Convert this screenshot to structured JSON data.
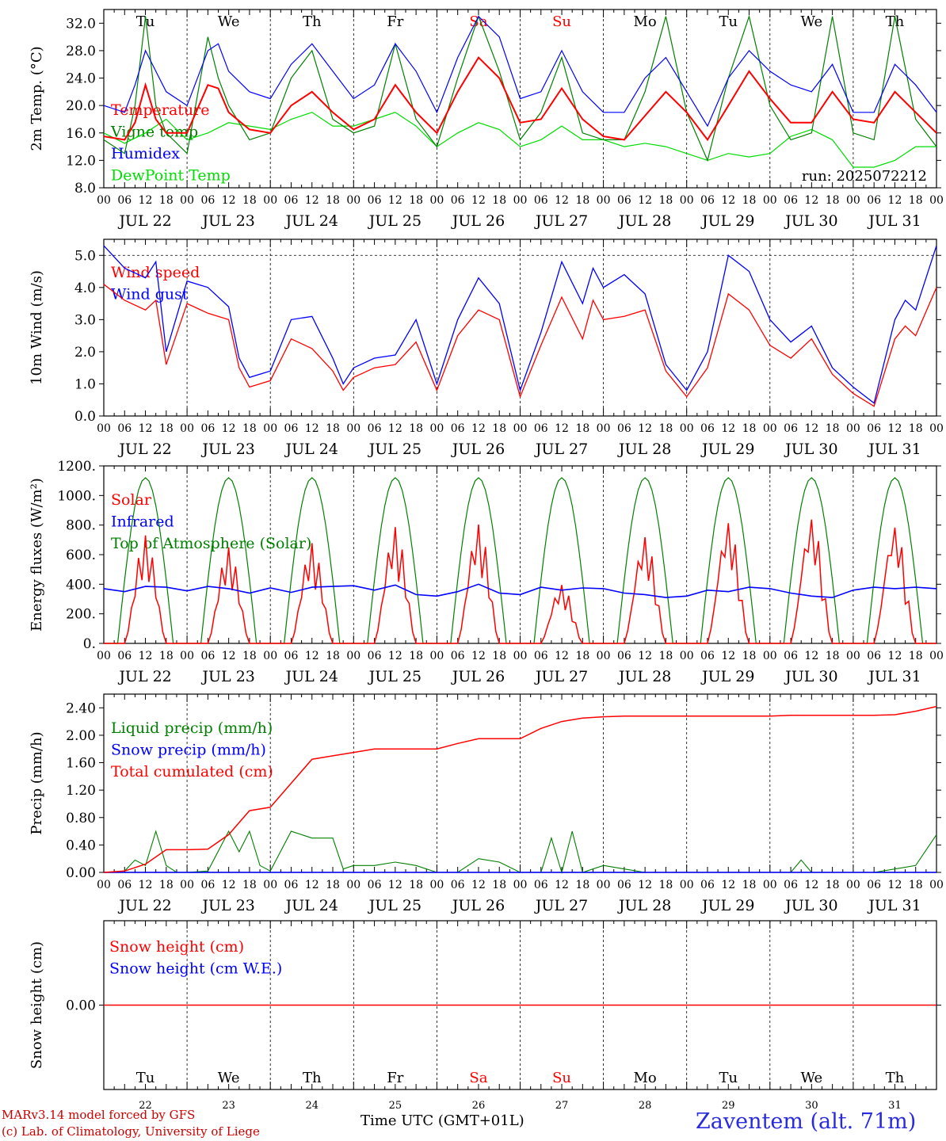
{
  "days": [
    "JUL 22",
    "JUL 23",
    "JUL 24",
    "JUL 25",
    "JUL 26",
    "JUL 27",
    "JUL 28",
    "JUL 29",
    "JUL 30",
    "JUL 31"
  ],
  "weekdays": [
    "Tu",
    "We",
    "Th",
    "Fr",
    "Sa",
    "Su",
    "Mo",
    "Tu",
    "We",
    "Th"
  ],
  "weekday_colors": [
    "#000000",
    "#000000",
    "#000000",
    "#000000",
    "#ff0000",
    "#ff0000",
    "#000000",
    "#000000",
    "#000000",
    "#000000"
  ],
  "day_numbers": [
    "22",
    "23",
    "24",
    "25",
    "26",
    "27",
    "28",
    "29",
    "30",
    "31"
  ],
  "hour_ticks": [
    "00",
    "06",
    "12",
    "18"
  ],
  "hour_end": "00",
  "colors": {
    "red": "#ff0000",
    "green": "#008000",
    "blue": "#0000ff",
    "lightgreen": "#00dd00",
    "grid": "#000000"
  },
  "footer": {
    "model": "MARv3.14 model forced by GFS",
    "copyright": "(c) Lab. of Climatology, University of Liege",
    "xlabel": "Time UTC (GMT+01L)",
    "station": "Zaventem (alt. 71m)"
  },
  "chart_data": [
    {
      "type": "line",
      "ylabel": "2m Temp. (°C)",
      "run": "run: 2025072212",
      "ylim": [
        8,
        34
      ],
      "yticks": [
        "8.0",
        "12.0",
        "16.0",
        "20.0",
        "24.0",
        "28.0",
        "32.0"
      ],
      "legend": [
        "Temperature",
        "Vigne temp",
        "Humidex",
        "DewPoint Temp"
      ],
      "series": [
        {
          "name": "Temperature",
          "color": "#ff0000",
          "x": [
            0,
            6,
            9,
            12,
            15,
            18,
            24,
            30,
            33,
            36,
            42,
            48,
            54,
            60,
            66,
            72,
            78,
            84,
            90,
            96,
            102,
            108,
            114,
            120,
            126,
            132,
            138,
            144,
            150,
            156,
            162,
            168,
            174,
            180,
            186,
            192,
            198,
            204,
            210,
            216,
            222,
            228,
            234,
            240
          ],
          "values": [
            15.5,
            15,
            17.5,
            23,
            18,
            16,
            16,
            23,
            22.5,
            19,
            16.5,
            16,
            20,
            22,
            19,
            16.5,
            18,
            23,
            19,
            16,
            22,
            27,
            24,
            17.5,
            18,
            22.5,
            18,
            15.5,
            15,
            18.5,
            22,
            19,
            15,
            20,
            25,
            21,
            17.5,
            17.5,
            22,
            18,
            17.5,
            22,
            19,
            16
          ]
        },
        {
          "name": "Vigne temp",
          "color": "#008000",
          "x": [
            0,
            6,
            9,
            12,
            15,
            18,
            24,
            30,
            33,
            36,
            42,
            48,
            54,
            60,
            66,
            72,
            78,
            84,
            90,
            96,
            102,
            108,
            114,
            120,
            126,
            132,
            138,
            144,
            150,
            156,
            162,
            168,
            174,
            180,
            186,
            192,
            198,
            204,
            210,
            216,
            222,
            228,
            234,
            240
          ],
          "values": [
            15,
            13,
            20,
            33,
            20,
            16,
            13,
            30,
            24,
            20,
            15,
            16,
            24,
            28,
            18,
            16,
            17,
            29,
            18,
            14,
            24,
            33,
            25,
            15,
            19,
            27,
            16,
            15,
            15,
            22,
            33,
            19,
            12,
            24,
            33,
            20,
            15,
            16,
            33,
            16,
            15,
            33,
            18,
            14
          ]
        },
        {
          "name": "Humidex",
          "color": "#0000ff",
          "x": [
            0,
            6,
            9,
            12,
            15,
            18,
            24,
            30,
            33,
            36,
            42,
            48,
            54,
            60,
            66,
            72,
            78,
            84,
            90,
            96,
            102,
            108,
            114,
            120,
            126,
            132,
            138,
            144,
            150,
            156,
            162,
            168,
            174,
            180,
            186,
            192,
            198,
            204,
            210,
            216,
            222,
            228,
            234,
            240
          ],
          "values": [
            20,
            19,
            23,
            28,
            25,
            22,
            20,
            28,
            29,
            25,
            22,
            21,
            26,
            29,
            25,
            21,
            23,
            29,
            25,
            19,
            27,
            33,
            30,
            21,
            22,
            28,
            22,
            19,
            19,
            24,
            27,
            22,
            17,
            24,
            28,
            25,
            23,
            22,
            26,
            19,
            19,
            26,
            23,
            19
          ]
        },
        {
          "name": "DewPoint Temp",
          "color": "#00dd00",
          "x": [
            0,
            6,
            12,
            18,
            24,
            30,
            36,
            42,
            48,
            54,
            60,
            66,
            72,
            78,
            84,
            90,
            96,
            102,
            108,
            114,
            120,
            126,
            132,
            138,
            144,
            150,
            156,
            162,
            168,
            174,
            180,
            186,
            192,
            198,
            204,
            210,
            216,
            222,
            228,
            234,
            240
          ],
          "values": [
            16,
            14.5,
            16,
            18,
            15,
            16,
            17.5,
            17,
            16.5,
            18,
            19,
            17,
            17,
            18,
            19,
            17,
            14,
            16,
            17.5,
            16.5,
            14,
            15,
            17,
            15,
            15,
            14,
            14.5,
            14,
            13,
            12,
            13,
            12.5,
            13,
            15.5,
            16.5,
            15,
            11,
            11,
            12,
            14,
            14
          ]
        }
      ]
    },
    {
      "type": "line",
      "ylabel": "10m Wind (m/s)",
      "ylim": [
        0,
        5.5
      ],
      "yticks": [
        "0.0",
        "1.0",
        "2.0",
        "3.0",
        "4.0",
        "5.0"
      ],
      "legend": [
        "Wind speed",
        "Wind gust"
      ],
      "series": [
        {
          "name": "Wind speed",
          "color": "#ff0000",
          "x": [
            0,
            6,
            12,
            15,
            18,
            24,
            30,
            36,
            39,
            42,
            48,
            54,
            60,
            66,
            69,
            72,
            78,
            84,
            90,
            96,
            102,
            108,
            114,
            120,
            126,
            132,
            138,
            141,
            144,
            150,
            156,
            162,
            168,
            174,
            180,
            186,
            192,
            198,
            204,
            210,
            216,
            222,
            228,
            231,
            234,
            240
          ],
          "values": [
            4.1,
            3.6,
            3.3,
            3.6,
            1.6,
            3.5,
            3.2,
            3.0,
            1.5,
            0.9,
            1.1,
            2.4,
            2.1,
            1.4,
            0.8,
            1.2,
            1.5,
            1.6,
            2.3,
            0.8,
            2.5,
            3.3,
            3.0,
            0.6,
            2.2,
            3.7,
            2.4,
            3.6,
            3.0,
            3.1,
            3.3,
            1.4,
            0.6,
            1.5,
            3.8,
            3.3,
            2.2,
            1.8,
            2.4,
            1.3,
            0.7,
            0.3,
            2.4,
            2.8,
            2.5,
            4.0
          ]
        },
        {
          "name": "Wind gust",
          "color": "#0000ff",
          "x": [
            0,
            6,
            12,
            15,
            18,
            24,
            30,
            36,
            39,
            42,
            48,
            54,
            60,
            66,
            69,
            72,
            78,
            84,
            90,
            96,
            102,
            108,
            114,
            120,
            126,
            132,
            138,
            141,
            144,
            150,
            156,
            162,
            168,
            174,
            180,
            186,
            192,
            198,
            204,
            210,
            216,
            222,
            228,
            231,
            234,
            240
          ],
          "values": [
            5.3,
            4.6,
            4.3,
            4.8,
            2.0,
            4.2,
            4.0,
            3.4,
            1.8,
            1.2,
            1.4,
            3.0,
            3.1,
            1.8,
            1.0,
            1.5,
            1.8,
            1.9,
            3.0,
            1.0,
            3.0,
            4.3,
            3.5,
            0.8,
            2.6,
            4.8,
            3.5,
            4.6,
            4.0,
            4.4,
            3.8,
            1.6,
            0.8,
            2.0,
            5.0,
            4.5,
            3.0,
            2.3,
            2.8,
            1.5,
            0.9,
            0.4,
            3.0,
            3.6,
            3.3,
            5.3
          ]
        }
      ]
    },
    {
      "type": "line",
      "ylabel": "Energy fluxes (W/m²)",
      "ylim": [
        0,
        1200
      ],
      "yticks": [
        "0.",
        "200.",
        "400.",
        "600.",
        "800.",
        "1000.",
        "1200."
      ],
      "legend": [
        "Solar",
        "Infrared",
        "Top of Atmosphere (Solar)"
      ],
      "toa_peak": 1120,
      "solar_peaks": [
        730,
        650,
        680,
        790,
        810,
        400,
        730,
        830,
        860,
        810
      ],
      "infrared": [
        370,
        350,
        385,
        380,
        355,
        385,
        370,
        340,
        375,
        345,
        380,
        385,
        390,
        360,
        395,
        330,
        320,
        350,
        400,
        340,
        330,
        380,
        360,
        375,
        370,
        340,
        330,
        310,
        320,
        360,
        350,
        380,
        370,
        340,
        320,
        310,
        360,
        380,
        370,
        380,
        370
      ]
    },
    {
      "type": "line",
      "ylabel": "Precip (mm/h)",
      "ylim": [
        0,
        2.6
      ],
      "yticks": [
        "0.00",
        "0.40",
        "0.80",
        "1.20",
        "1.60",
        "2.00",
        "2.40"
      ],
      "legend": [
        "Liquid precip (mm/h)",
        "Snow precip (mm/h)",
        "Total cumulated (cm)"
      ],
      "series": [
        {
          "name": "Total cumulated (cm)",
          "color": "#ff0000",
          "x": [
            0,
            6,
            12,
            18,
            24,
            30,
            36,
            42,
            48,
            54,
            60,
            66,
            72,
            78,
            84,
            90,
            96,
            102,
            108,
            114,
            120,
            126,
            132,
            138,
            144,
            150,
            156,
            162,
            168,
            174,
            180,
            186,
            192,
            198,
            204,
            210,
            216,
            222,
            228,
            234,
            240
          ],
          "values": [
            0,
            0.02,
            0.12,
            0.33,
            0.33,
            0.34,
            0.55,
            0.9,
            0.95,
            1.3,
            1.65,
            1.7,
            1.75,
            1.8,
            1.8,
            1.8,
            1.8,
            1.88,
            1.95,
            1.95,
            1.95,
            2.1,
            2.2,
            2.25,
            2.27,
            2.28,
            2.28,
            2.28,
            2.28,
            2.28,
            2.28,
            2.28,
            2.28,
            2.29,
            2.29,
            2.29,
            2.29,
            2.29,
            2.3,
            2.35,
            2.42
          ]
        },
        {
          "name": "Liquid precip (mm/h)",
          "color": "#008000",
          "x": [
            0,
            6,
            9,
            12,
            15,
            18,
            21,
            24,
            30,
            36,
            39,
            42,
            45,
            48,
            54,
            60,
            66,
            69,
            72,
            78,
            84,
            90,
            96,
            102,
            108,
            114,
            120,
            126,
            129,
            132,
            135,
            138,
            144,
            150,
            156,
            162,
            168,
            174,
            180,
            186,
            192,
            198,
            201,
            204,
            210,
            216,
            222,
            228,
            234,
            240
          ],
          "values": [
            0,
            0.02,
            0.18,
            0.1,
            0.6,
            0.1,
            0,
            0,
            0.02,
            0.6,
            0.3,
            0.6,
            0.1,
            0.02,
            0.6,
            0.5,
            0.5,
            0.05,
            0.1,
            0.1,
            0.15,
            0.1,
            0,
            0,
            0.2,
            0.15,
            0,
            0,
            0.5,
            0,
            0.6,
            0,
            0.1,
            0.05,
            0,
            0,
            0,
            0,
            0,
            0,
            0,
            0,
            0.18,
            0,
            0,
            0,
            0,
            0.05,
            0.1,
            0.55
          ]
        }
      ]
    },
    {
      "type": "line",
      "ylabel": "Snow height (cm)",
      "yticks": [
        "0.00"
      ],
      "legend": [
        "Snow height (cm)",
        "Snow height (cm W.E.)"
      ],
      "series": [
        {
          "name": "Snow height (cm)",
          "color": "#ff0000",
          "values": [
            0
          ]
        }
      ]
    }
  ]
}
